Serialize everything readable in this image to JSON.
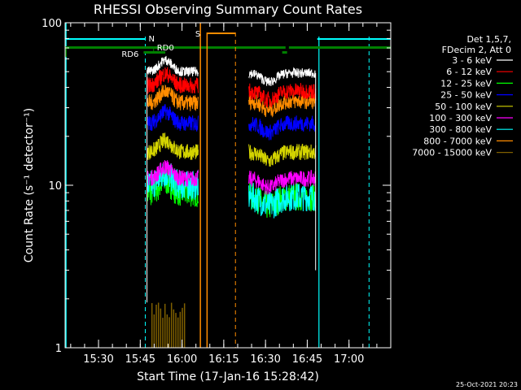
{
  "chart_data": {
    "type": "line",
    "title": "RHESSI Observing Summary Count Rates",
    "xlabel": "Start Time (17-Jan-16 15:28:42)",
    "ylabel": "Count Rate (s⁻¹ detector⁻¹)",
    "yscale": "log",
    "ylim": [
      1,
      100
    ],
    "xlim_minutes": [
      15.3,
      17.25
    ],
    "x_tick_labels": [
      "15:30",
      "15:45",
      "16:00",
      "16:15",
      "16:30",
      "16:45",
      "17:00"
    ],
    "y_tick_labels": [
      "1",
      "10",
      "100"
    ],
    "legend_header": [
      "Det 1,5,7,",
      "FDecim 2, Att 0"
    ],
    "legend_position": "right",
    "series": [
      {
        "name": "3 - 6 keV",
        "color": "#ffffff",
        "level_a": 50,
        "level_b": 49
      },
      {
        "name": "6 - 12 keV",
        "color": "#ff0000",
        "level_a": 41,
        "level_b": 38
      },
      {
        "name": "12 - 25 keV",
        "color": "#00ff00",
        "level_a": 9.0,
        "level_b": 8.5
      },
      {
        "name": "25 - 50 keV",
        "color": "#0000ff",
        "level_a": 24,
        "level_b": 24
      },
      {
        "name": "50 - 100 keV",
        "color": "#d4d400",
        "level_a": 16,
        "level_b": 16
      },
      {
        "name": "100 - 300 keV",
        "color": "#ff00ff",
        "level_a": 11,
        "level_b": 11
      },
      {
        "name": "300 - 800 keV",
        "color": "#00ffff",
        "level_a": 10,
        "level_b": 8.5
      },
      {
        "name": "800 - 7000 keV",
        "color": "#ff8c00",
        "level_a": 32,
        "level_b": 33
      },
      {
        "name": "7000 - 15000 keV",
        "color": "#806000",
        "level_a": 1.5,
        "level_b": 1.0
      }
    ],
    "flags": [
      {
        "label": "N",
        "color": "#00ffff"
      },
      {
        "label": "RD0",
        "color": "#008000"
      },
      {
        "label": "RD6",
        "color": "#008000"
      },
      {
        "label": "S",
        "color": "#ff8c00"
      }
    ],
    "footer_date": "25-Oct-2021 20:23"
  }
}
